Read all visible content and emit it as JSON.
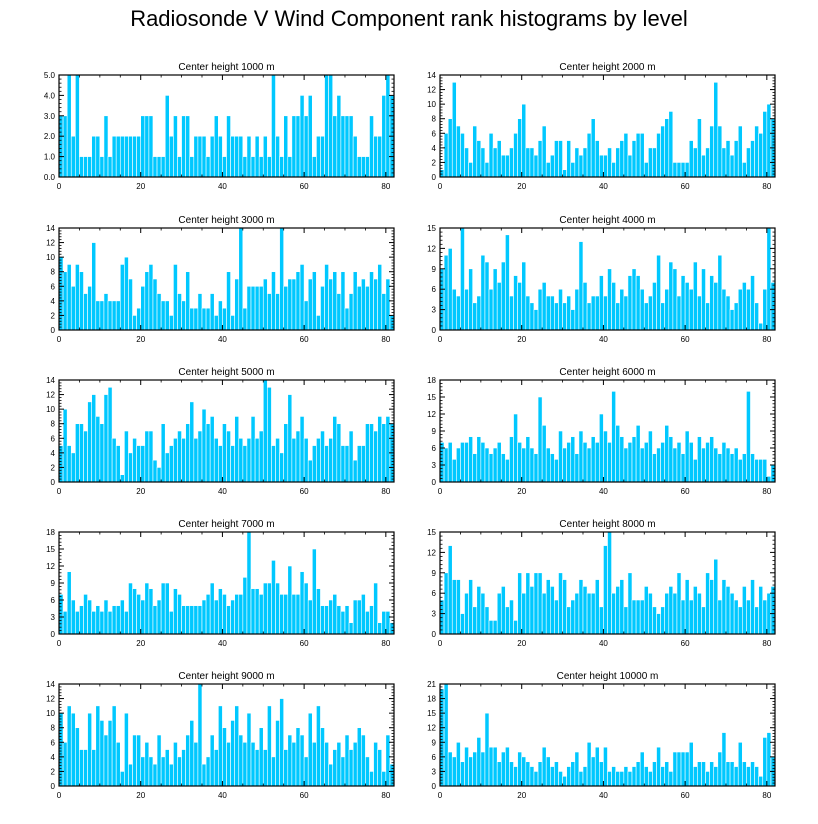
{
  "title": "Radiosonde V Wind Component rank histograms by level",
  "colors": {
    "bar": "#00c8ff",
    "bar_edge": "#ffffff",
    "axis": "#000000"
  },
  "chart_data": [
    {
      "type": "bar",
      "title": "Center height 1000 m",
      "xlim": [
        0,
        82
      ],
      "ylim": [
        0,
        5
      ],
      "yticks": [
        0,
        1,
        2,
        3,
        4,
        5
      ],
      "ytick_labels": [
        "0.0",
        "1.0",
        "2.0",
        "3.0",
        "4.0",
        "5.0"
      ],
      "xticks": [
        0,
        20,
        40,
        60,
        80
      ],
      "xtick_labels": [
        "0",
        "20",
        "40",
        "60",
        "80"
      ],
      "values": [
        3,
        3,
        5,
        2,
        5,
        1,
        1,
        1,
        2,
        2,
        1,
        3,
        1,
        2,
        2,
        2,
        2,
        2,
        2,
        2,
        3,
        3,
        3,
        1,
        1,
        1,
        4,
        2,
        3,
        1,
        3,
        3,
        1,
        2,
        2,
        2,
        1,
        2,
        3,
        2,
        1,
        3,
        2,
        2,
        2,
        1,
        2,
        1,
        2,
        1,
        2,
        1,
        5,
        2,
        1,
        3,
        1,
        3,
        3,
        4,
        3,
        4,
        1,
        2,
        2,
        5,
        5,
        3,
        4,
        3,
        3,
        3,
        2,
        1,
        1,
        1,
        3,
        2,
        2,
        4,
        5,
        4
      ]
    },
    {
      "type": "bar",
      "title": "Center height 2000 m",
      "xlim": [
        0,
        82
      ],
      "ylim": [
        0,
        14
      ],
      "yticks": [
        0,
        2,
        4,
        6,
        8,
        10,
        12,
        14
      ],
      "ytick_labels": [
        "0",
        "2",
        "4",
        "6",
        "8",
        "10",
        "12",
        "14"
      ],
      "xticks": [
        0,
        20,
        40,
        60,
        80
      ],
      "xtick_labels": [
        "0",
        "20",
        "40",
        "60",
        "80"
      ],
      "values": [
        1,
        6,
        8,
        13,
        7,
        6,
        4,
        2,
        7,
        5,
        4,
        2,
        6,
        4,
        5,
        3,
        3,
        4,
        6,
        8,
        10,
        4,
        4,
        3,
        5,
        7,
        2,
        3,
        5,
        5,
        1,
        5,
        2,
        4,
        3,
        4,
        6,
        8,
        5,
        3,
        3,
        4,
        2,
        4,
        5,
        6,
        3,
        5,
        6,
        6,
        2,
        4,
        4,
        6,
        7,
        8,
        9,
        2,
        2,
        2,
        2,
        5,
        4,
        8,
        3,
        4,
        7,
        13,
        7,
        4,
        5,
        3,
        5,
        7,
        2,
        4,
        5,
        7,
        6,
        9,
        10,
        8
      ]
    },
    {
      "type": "bar",
      "title": "Center height 3000 m",
      "xlim": [
        0,
        82
      ],
      "ylim": [
        0,
        14
      ],
      "yticks": [
        0,
        2,
        4,
        6,
        8,
        10,
        12,
        14
      ],
      "ytick_labels": [
        "0",
        "2",
        "4",
        "6",
        "8",
        "10",
        "12",
        "14"
      ],
      "xticks": [
        0,
        20,
        40,
        60,
        80
      ],
      "xtick_labels": [
        "0",
        "20",
        "40",
        "60",
        "80"
      ],
      "values": [
        10,
        8,
        9,
        6,
        9,
        8,
        5,
        6,
        12,
        4,
        4,
        5,
        4,
        4,
        4,
        9,
        10,
        7,
        2,
        3,
        6,
        8,
        9,
        7,
        5,
        4,
        4,
        2,
        9,
        5,
        4,
        8,
        3,
        3,
        5,
        3,
        3,
        5,
        2,
        4,
        3,
        8,
        2,
        7,
        14,
        3,
        6,
        6,
        6,
        6,
        7,
        5,
        8,
        5,
        14,
        6,
        7,
        7,
        8,
        9,
        4,
        7,
        8,
        2,
        6,
        9,
        7,
        8,
        5,
        8,
        3,
        5,
        8,
        6,
        7,
        6,
        8,
        7,
        9,
        5,
        7,
        2
      ]
    },
    {
      "type": "bar",
      "title": "Center height 4000 m",
      "xlim": [
        0,
        82
      ],
      "ylim": [
        0,
        15
      ],
      "yticks": [
        0,
        3,
        6,
        9,
        12,
        15
      ],
      "ytick_labels": [
        "0",
        "3",
        "6",
        "9",
        "12",
        "15"
      ],
      "xticks": [
        0,
        20,
        40,
        60,
        80
      ],
      "xtick_labels": [
        "0",
        "20",
        "40",
        "60",
        "80"
      ],
      "values": [
        9,
        11,
        12,
        6,
        5,
        15,
        6,
        9,
        4,
        5,
        11,
        10,
        6,
        9,
        7,
        10,
        14,
        5,
        8,
        7,
        10,
        5,
        4,
        3,
        6,
        7,
        5,
        5,
        4,
        6,
        4,
        5,
        3,
        6,
        13,
        7,
        4,
        5,
        5,
        8,
        5,
        9,
        7,
        4,
        6,
        5,
        8,
        9,
        8,
        6,
        4,
        5,
        7,
        11,
        4,
        6,
        10,
        9,
        5,
        8,
        7,
        6,
        10,
        5,
        9,
        4,
        8,
        7,
        11,
        6,
        5,
        3,
        4,
        6,
        7,
        6,
        8,
        4,
        1,
        6,
        15,
        7
      ]
    },
    {
      "type": "bar",
      "title": "Center height 5000 m",
      "xlim": [
        0,
        82
      ],
      "ylim": [
        0,
        14
      ],
      "yticks": [
        0,
        2,
        4,
        6,
        8,
        10,
        12,
        14
      ],
      "ytick_labels": [
        "0",
        "2",
        "4",
        "6",
        "8",
        "10",
        "12",
        "14"
      ],
      "xticks": [
        0,
        20,
        40,
        60,
        80
      ],
      "xtick_labels": [
        "0",
        "20",
        "40",
        "60",
        "80"
      ],
      "values": [
        5,
        10,
        5,
        4,
        8,
        8,
        7,
        11,
        12,
        9,
        8,
        12,
        13,
        6,
        5,
        1,
        7,
        4,
        6,
        5,
        5,
        7,
        7,
        3,
        2,
        8,
        4,
        5,
        6,
        7,
        6,
        8,
        11,
        6,
        7,
        10,
        8,
        9,
        6,
        5,
        8,
        7,
        5,
        9,
        6,
        5,
        6,
        9,
        6,
        7,
        14,
        13,
        5,
        6,
        4,
        8,
        12,
        6,
        7,
        9,
        6,
        3,
        5,
        6,
        7,
        5,
        6,
        9,
        8,
        5,
        5,
        7,
        3,
        5,
        5,
        8,
        8,
        7,
        9,
        8,
        9,
        8
      ]
    },
    {
      "type": "bar",
      "title": "Center height 6000 m",
      "xlim": [
        0,
        82
      ],
      "ylim": [
        0,
        18
      ],
      "yticks": [
        0,
        3,
        6,
        9,
        12,
        15,
        18
      ],
      "ytick_labels": [
        "0",
        "3",
        "6",
        "9",
        "12",
        "15",
        "18"
      ],
      "xticks": [
        0,
        20,
        40,
        60,
        80
      ],
      "xtick_labels": [
        "0",
        "20",
        "40",
        "60",
        "80"
      ],
      "values": [
        7,
        6,
        7,
        4,
        6,
        7,
        7,
        8,
        5,
        8,
        7,
        6,
        5,
        6,
        7,
        5,
        4,
        8,
        12,
        7,
        6,
        8,
        6,
        5,
        15,
        10,
        6,
        5,
        4,
        9,
        6,
        7,
        8,
        5,
        9,
        7,
        6,
        8,
        7,
        12,
        9,
        7,
        16,
        10,
        8,
        6,
        7,
        8,
        10,
        6,
        7,
        9,
        5,
        6,
        7,
        10,
        8,
        6,
        7,
        5,
        9,
        7,
        4,
        8,
        6,
        7,
        8,
        6,
        5,
        7,
        6,
        5,
        6,
        4,
        5,
        16,
        5,
        4,
        4,
        4,
        1,
        3
      ]
    },
    {
      "type": "bar",
      "title": "Center height 7000 m",
      "xlim": [
        0,
        82
      ],
      "ylim": [
        0,
        18
      ],
      "yticks": [
        0,
        3,
        6,
        9,
        12,
        15,
        18
      ],
      "ytick_labels": [
        "0",
        "3",
        "6",
        "9",
        "12",
        "15",
        "18"
      ],
      "xticks": [
        0,
        20,
        40,
        60,
        80
      ],
      "xtick_labels": [
        "0",
        "20",
        "40",
        "60",
        "80"
      ],
      "values": [
        7,
        4,
        11,
        6,
        4,
        5,
        7,
        6,
        4,
        5,
        4,
        6,
        4,
        5,
        5,
        6,
        4,
        9,
        8,
        7,
        6,
        9,
        8,
        5,
        6,
        9,
        9,
        4,
        8,
        7,
        5,
        5,
        5,
        5,
        5,
        6,
        7,
        9,
        6,
        8,
        7,
        5,
        6,
        7,
        7,
        10,
        18,
        8,
        8,
        7,
        9,
        9,
        13,
        9,
        7,
        7,
        12,
        7,
        7,
        11,
        9,
        6,
        15,
        8,
        5,
        5,
        6,
        7,
        5,
        4,
        5,
        2,
        6,
        6,
        7,
        4,
        5,
        9,
        2,
        4,
        4,
        2
      ]
    },
    {
      "type": "bar",
      "title": "Center height 8000 m",
      "xlim": [
        0,
        82
      ],
      "ylim": [
        0,
        15
      ],
      "yticks": [
        0,
        3,
        6,
        9,
        12,
        15
      ],
      "ytick_labels": [
        "0",
        "3",
        "6",
        "9",
        "12",
        "15"
      ],
      "xticks": [
        0,
        20,
        40,
        60,
        80
      ],
      "xtick_labels": [
        "0",
        "20",
        "40",
        "60",
        "80"
      ],
      "values": [
        5,
        9,
        13,
        8,
        8,
        3,
        6,
        8,
        4,
        7,
        6,
        4,
        2,
        2,
        6,
        7,
        4,
        5,
        2,
        9,
        6,
        9,
        7,
        9,
        9,
        6,
        8,
        7,
        5,
        9,
        8,
        4,
        5,
        6,
        8,
        7,
        6,
        6,
        8,
        4,
        13,
        15,
        6,
        7,
        8,
        4,
        9,
        5,
        5,
        5,
        7,
        6,
        4,
        3,
        4,
        6,
        7,
        6,
        9,
        5,
        8,
        5,
        7,
        6,
        4,
        9,
        8,
        11,
        5,
        8,
        7,
        6,
        5,
        4,
        7,
        5,
        8,
        4,
        7,
        5,
        6,
        7
      ]
    },
    {
      "type": "bar",
      "title": "Center height 9000 m",
      "xlim": [
        0,
        82
      ],
      "ylim": [
        0,
        14
      ],
      "yticks": [
        0,
        2,
        4,
        6,
        8,
        10,
        12,
        14
      ],
      "ytick_labels": [
        "0",
        "2",
        "4",
        "6",
        "8",
        "10",
        "12",
        "14"
      ],
      "xticks": [
        0,
        20,
        40,
        60,
        80
      ],
      "xtick_labels": [
        "0",
        "20",
        "40",
        "60",
        "80"
      ],
      "values": [
        10,
        6,
        11,
        10,
        8,
        5,
        5,
        10,
        5,
        11,
        9,
        7,
        9,
        11,
        6,
        2,
        10,
        3,
        7,
        7,
        4,
        6,
        4,
        3,
        7,
        4,
        5,
        3,
        6,
        4,
        5,
        7,
        9,
        6,
        14,
        3,
        4,
        7,
        5,
        11,
        8,
        6,
        9,
        11,
        7,
        6,
        10,
        6,
        5,
        8,
        5,
        11,
        4,
        9,
        12,
        5,
        7,
        6,
        8,
        7,
        4,
        10,
        6,
        11,
        8,
        6,
        3,
        5,
        6,
        4,
        7,
        5,
        6,
        8,
        7,
        4,
        2,
        6,
        5,
        2,
        7,
        3
      ]
    },
    {
      "type": "bar",
      "title": "Center height 10000 m",
      "xlim": [
        0,
        82
      ],
      "ylim": [
        0,
        21
      ],
      "yticks": [
        0,
        3,
        6,
        9,
        12,
        15,
        18,
        21
      ],
      "ytick_labels": [
        "0",
        "3",
        "6",
        "9",
        "12",
        "15",
        "18",
        "21"
      ],
      "xticks": [
        0,
        20,
        40,
        60,
        80
      ],
      "xtick_labels": [
        "0",
        "20",
        "40",
        "60",
        "80"
      ],
      "values": [
        20,
        21,
        7,
        6,
        9,
        5,
        8,
        6,
        7,
        10,
        7,
        15,
        8,
        8,
        5,
        7,
        8,
        5,
        4,
        7,
        6,
        5,
        4,
        3,
        5,
        8,
        6,
        4,
        5,
        3,
        2,
        4,
        5,
        7,
        3,
        4,
        9,
        6,
        8,
        5,
        8,
        3,
        4,
        3,
        3,
        4,
        3,
        4,
        5,
        7,
        4,
        3,
        5,
        8,
        4,
        5,
        3,
        7,
        7,
        7,
        7,
        9,
        4,
        5,
        5,
        3,
        5,
        4,
        7,
        11,
        5,
        5,
        4,
        9,
        5,
        4,
        5,
        4,
        2,
        10,
        11,
        6
      ]
    }
  ]
}
